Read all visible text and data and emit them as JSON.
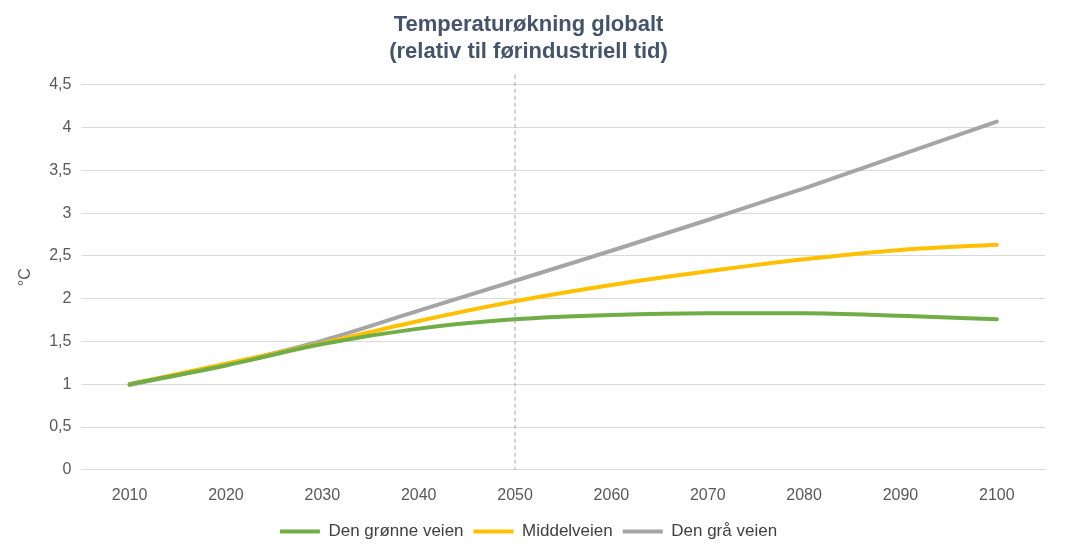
{
  "chart_data": {
    "type": "line",
    "title": "Temperaturøkning globalt\n(relativ til førindustriell tid)",
    "ylabel": "°C",
    "categories": [
      "2010",
      "2020",
      "2030",
      "2040",
      "2050",
      "2060",
      "2070",
      "2080",
      "2090",
      "2100"
    ],
    "series": [
      {
        "name": "Den grønne veien",
        "color": "#70ad47",
        "values": [
          1.0,
          1.22,
          1.47,
          1.65,
          1.76,
          1.81,
          1.83,
          1.83,
          1.8,
          1.76
        ]
      },
      {
        "name": "Middelveien",
        "color": "#ffc000",
        "values": [
          1.0,
          1.24,
          1.48,
          1.74,
          1.97,
          2.16,
          2.32,
          2.46,
          2.57,
          2.63
        ]
      },
      {
        "name": "Den grå veien",
        "color": "#a5a5a5",
        "values": [
          0.99,
          1.23,
          1.51,
          1.86,
          2.21,
          2.56,
          2.92,
          3.29,
          3.68,
          4.07
        ]
      }
    ],
    "ylim": [
      0,
      4.5
    ],
    "yticks": [
      0,
      {
        "value": 0.5,
        "label": "0,5"
      },
      1,
      {
        "value": 1.5,
        "label": "1,5"
      },
      2,
      {
        "value": 2.5,
        "label": "2,5"
      },
      3,
      {
        "value": 3.5,
        "label": "3,5"
      },
      4,
      {
        "value": 4.5,
        "label": "4,5"
      }
    ],
    "ref_lines": [
      {
        "axis": "x",
        "value": "2050",
        "color": "#a6a6a6",
        "line_style": "dashed"
      }
    ],
    "grid": "y",
    "legend": "bottom",
    "marker": "none",
    "line_style": "solid"
  }
}
